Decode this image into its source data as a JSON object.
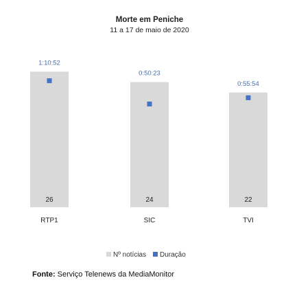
{
  "chart_data": {
    "type": "bar",
    "title": "Morte em Peniche",
    "subtitle": "11 a 17 de maio de 2020",
    "categories": [
      "RTP1",
      "SIC",
      "TVI"
    ],
    "series": [
      {
        "name": "Nº notícias",
        "type": "bar",
        "color": "#d9d9d9",
        "values": [
          26,
          24,
          22
        ]
      },
      {
        "name": "Duração",
        "type": "scatter",
        "color": "#4472c4",
        "values": [
          "1:10:52",
          "0:50:23",
          "0:55:54"
        ],
        "values_seconds": [
          4252,
          3023,
          3354
        ]
      }
    ],
    "legend_position": "bottom",
    "grid": false
  },
  "source": {
    "label": "Fonte:",
    "text": "Serviço Telenews da MediaMonitor"
  }
}
